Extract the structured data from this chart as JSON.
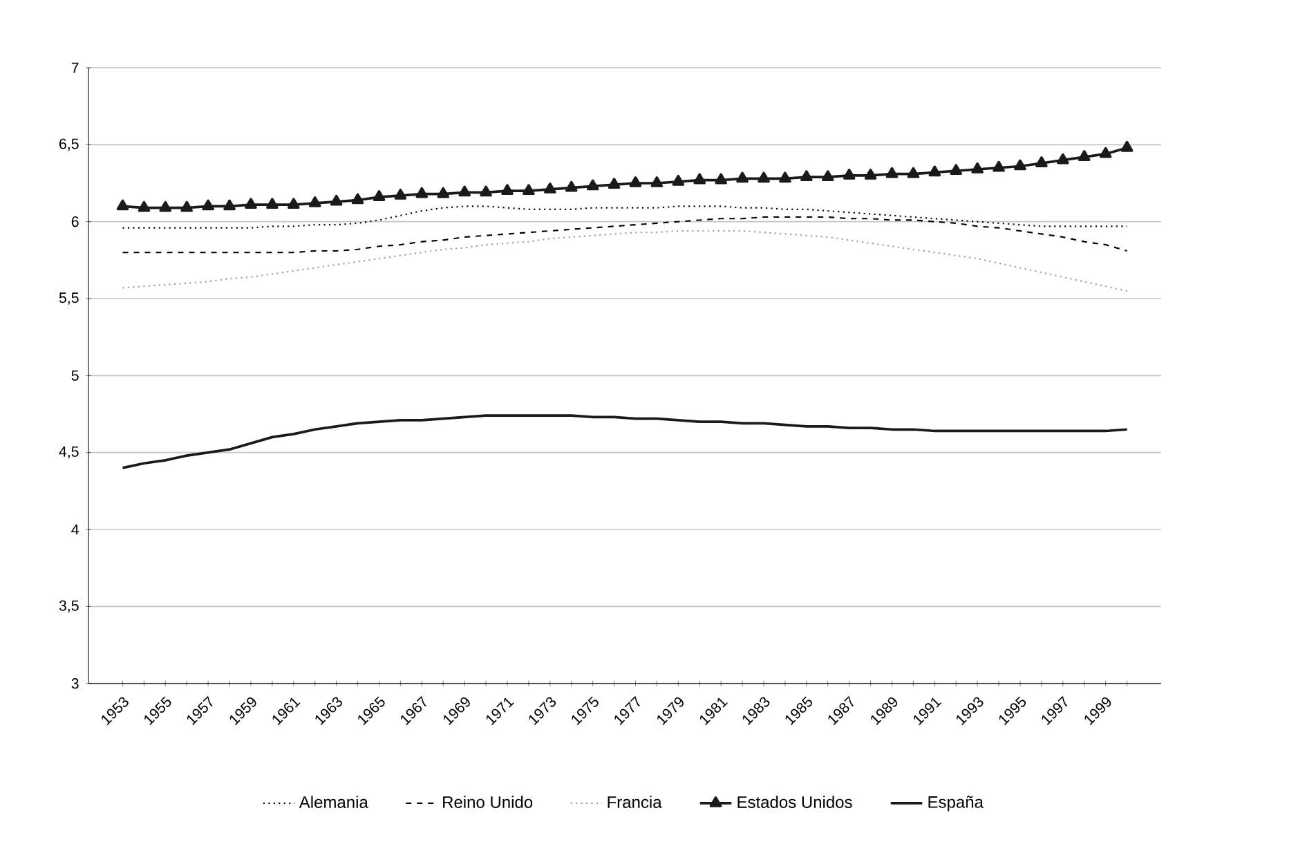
{
  "chart_data": {
    "type": "line",
    "categories": [
      "1953",
      null,
      "1955",
      null,
      "1957",
      null,
      "1959",
      null,
      "1961",
      null,
      "1963",
      null,
      "1965",
      null,
      "1967",
      null,
      "1969",
      null,
      "1971",
      null,
      "1973",
      null,
      "1975",
      null,
      "1977",
      null,
      "1979",
      null,
      "1981",
      null,
      "1983",
      null,
      "1985",
      null,
      "1987",
      null,
      "1989",
      null,
      "1991",
      null,
      "1993",
      null,
      "1995",
      null,
      "1997",
      null,
      "1999",
      null
    ],
    "series": [
      {
        "name": "Alemania",
        "color": "#000000",
        "line_style": "dotted",
        "marker": "none",
        "values": [
          5.96,
          5.96,
          5.96,
          5.96,
          5.96,
          5.96,
          5.96,
          5.97,
          5.97,
          5.98,
          5.98,
          5.99,
          6.01,
          6.04,
          6.07,
          6.09,
          6.1,
          6.1,
          6.09,
          6.08,
          6.08,
          6.08,
          6.09,
          6.09,
          6.09,
          6.09,
          6.1,
          6.1,
          6.1,
          6.09,
          6.09,
          6.08,
          6.08,
          6.07,
          6.06,
          6.05,
          6.04,
          6.03,
          6.02,
          6.01,
          6.0,
          5.99,
          5.98,
          5.97,
          5.97,
          5.97,
          5.97,
          5.97
        ]
      },
      {
        "name": "Reino Unido",
        "color": "#000000",
        "line_style": "dashed",
        "marker": "none",
        "values": [
          5.8,
          5.8,
          5.8,
          5.8,
          5.8,
          5.8,
          5.8,
          5.8,
          5.8,
          5.81,
          5.81,
          5.82,
          5.84,
          5.85,
          5.87,
          5.88,
          5.9,
          5.91,
          5.92,
          5.93,
          5.94,
          5.95,
          5.96,
          5.97,
          5.98,
          5.99,
          6.0,
          6.01,
          6.02,
          6.02,
          6.03,
          6.03,
          6.03,
          6.03,
          6.02,
          6.02,
          6.01,
          6.01,
          6.0,
          5.99,
          5.97,
          5.96,
          5.94,
          5.92,
          5.9,
          5.87,
          5.85,
          5.81
        ]
      },
      {
        "name": "Francia",
        "color": "#9a9a9a",
        "line_style": "dotted",
        "marker": "none",
        "values": [
          5.57,
          5.58,
          5.59,
          5.6,
          5.61,
          5.63,
          5.64,
          5.66,
          5.68,
          5.7,
          5.72,
          5.74,
          5.76,
          5.78,
          5.8,
          5.82,
          5.83,
          5.85,
          5.86,
          5.87,
          5.89,
          5.9,
          5.91,
          5.92,
          5.93,
          5.93,
          5.94,
          5.94,
          5.94,
          5.94,
          5.93,
          5.92,
          5.91,
          5.9,
          5.88,
          5.86,
          5.84,
          5.82,
          5.8,
          5.78,
          5.76,
          5.73,
          5.7,
          5.67,
          5.64,
          5.61,
          5.58,
          5.55
        ]
      },
      {
        "name": "Estados Unidos",
        "color": "#1a1a1a",
        "line_style": "solid",
        "marker": "triangle",
        "values": [
          6.1,
          6.09,
          6.09,
          6.09,
          6.1,
          6.1,
          6.11,
          6.11,
          6.11,
          6.12,
          6.13,
          6.14,
          6.16,
          6.17,
          6.18,
          6.18,
          6.19,
          6.19,
          6.2,
          6.2,
          6.21,
          6.22,
          6.23,
          6.24,
          6.25,
          6.25,
          6.26,
          6.27,
          6.27,
          6.28,
          6.28,
          6.28,
          6.29,
          6.29,
          6.3,
          6.3,
          6.31,
          6.31,
          6.32,
          6.33,
          6.34,
          6.35,
          6.36,
          6.38,
          6.4,
          6.42,
          6.44,
          6.48
        ]
      },
      {
        "name": "España",
        "color": "#1a1a1a",
        "line_style": "solid",
        "marker": "none",
        "values": [
          4.4,
          4.43,
          4.45,
          4.48,
          4.5,
          4.52,
          4.56,
          4.6,
          4.62,
          4.65,
          4.67,
          4.69,
          4.7,
          4.71,
          4.71,
          4.72,
          4.73,
          4.74,
          4.74,
          4.74,
          4.74,
          4.74,
          4.73,
          4.73,
          4.72,
          4.72,
          4.71,
          4.7,
          4.7,
          4.69,
          4.69,
          4.68,
          4.67,
          4.67,
          4.66,
          4.66,
          4.65,
          4.65,
          4.64,
          4.64,
          4.64,
          4.64,
          4.64,
          4.64,
          4.64,
          4.64,
          4.64,
          4.65
        ]
      }
    ],
    "ylim": [
      3,
      7
    ],
    "yticks": [
      3,
      {
        "value": 3.5,
        "label": "3,5"
      },
      4,
      {
        "value": 4.5,
        "label": "4,5"
      },
      5,
      {
        "value": 5.5,
        "label": "5,5"
      },
      6,
      {
        "value": 6.5,
        "label": "6,5"
      },
      7
    ],
    "grid": "y",
    "legend": "bottom"
  }
}
